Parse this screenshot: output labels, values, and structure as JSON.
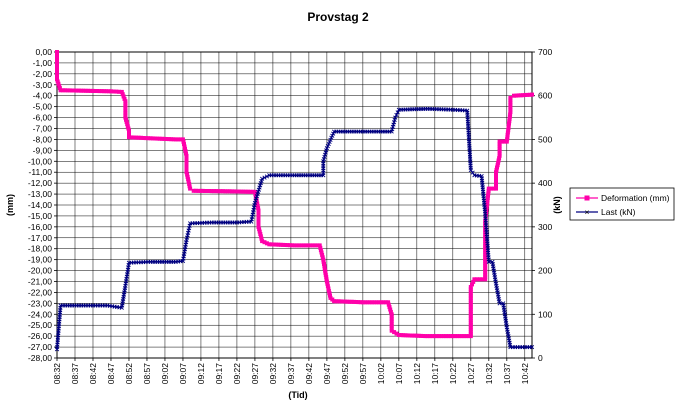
{
  "chart_data": {
    "type": "line",
    "title": "Provstag 2",
    "xlabel": "(Tid)",
    "ylabel_left": "(mm)",
    "ylabel_right": "(kN)",
    "grid": true,
    "legend_position": "right",
    "x_ticks": [
      "08:32",
      "08:37",
      "08:42",
      "08:47",
      "08:52",
      "08:57",
      "09:02",
      "09:07",
      "09:12",
      "09:17",
      "09:22",
      "09:27",
      "09:32",
      "09:37",
      "09:42",
      "09:47",
      "09:52",
      "09:57",
      "10:02",
      "10:07",
      "10:12",
      "10:17",
      "10:22",
      "10:27",
      "10:32",
      "10:37",
      "10:42"
    ],
    "x_minutes_start": 512,
    "x_minutes_end": 644,
    "ylim_left": [
      -28,
      0
    ],
    "ylim_right": [
      0,
      700
    ],
    "left_ticks": [
      "0,00",
      "-1,00",
      "-2,00",
      "-3,00",
      "-4,00",
      "-5,00",
      "-6,00",
      "-7,00",
      "-8,00",
      "-9,00",
      "-10,00",
      "-11,00",
      "-12,00",
      "-13,00",
      "-14,00",
      "-15,00",
      "-16,00",
      "-17,00",
      "-18,00",
      "-19,00",
      "-20,00",
      "-21,00",
      "-22,00",
      "-23,00",
      "-24,00",
      "-25,00",
      "-26,00",
      "-27,00",
      "-28,00"
    ],
    "right_ticks": [
      "0",
      "100",
      "200",
      "300",
      "400",
      "500",
      "600",
      "700"
    ],
    "series": [
      {
        "name": "Deformation (mm)",
        "axis": "left",
        "color": "#ff00aa",
        "marker": "square",
        "points": [
          [
            "08:32",
            0
          ],
          [
            "08:32",
            -1.0
          ],
          [
            "08:32",
            -2.5
          ],
          [
            "08:33",
            -3.5
          ],
          [
            "08:40",
            -3.55
          ],
          [
            "08:47",
            -3.6
          ],
          [
            "08:50",
            -3.65
          ],
          [
            "08:51",
            -4.5
          ],
          [
            "08:51",
            -6.0
          ],
          [
            "08:52",
            -7.2
          ],
          [
            "08:52",
            -7.8
          ],
          [
            "08:58",
            -7.9
          ],
          [
            "09:05",
            -8.0
          ],
          [
            "09:07",
            -8.0
          ],
          [
            "09:08",
            -9.5
          ],
          [
            "09:08",
            -11.0
          ],
          [
            "09:09",
            -12.5
          ],
          [
            "09:10",
            -12.7
          ],
          [
            "09:20",
            -12.75
          ],
          [
            "09:27",
            -12.8
          ],
          [
            "09:28",
            -14.5
          ],
          [
            "09:28",
            -16.0
          ],
          [
            "09:29",
            -17.3
          ],
          [
            "09:31",
            -17.6
          ],
          [
            "09:38",
            -17.7
          ],
          [
            "09:45",
            -17.7
          ],
          [
            "09:46",
            -19.0
          ],
          [
            "09:47",
            -21.0
          ],
          [
            "09:48",
            -22.5
          ],
          [
            "09:49",
            -22.8
          ],
          [
            "09:57",
            -22.9
          ],
          [
            "10:04",
            -22.9
          ],
          [
            "10:05",
            -24.0
          ],
          [
            "10:05",
            -25.5
          ],
          [
            "10:07",
            -25.9
          ],
          [
            "10:15",
            -26.0
          ],
          [
            "10:22",
            -26.0
          ],
          [
            "10:27",
            -26.0
          ],
          [
            "10:27",
            -21.5
          ],
          [
            "10:28",
            -20.8
          ],
          [
            "10:31",
            -20.8
          ],
          [
            "10:31",
            -15.5
          ],
          [
            "10:32",
            -12.5
          ],
          [
            "10:34",
            -12.5
          ],
          [
            "10:34",
            -11.0
          ],
          [
            "10:35",
            -9.5
          ],
          [
            "10:35",
            -8.2
          ],
          [
            "10:37",
            -8.2
          ],
          [
            "10:38",
            -5.5
          ],
          [
            "10:38",
            -4.2
          ],
          [
            "10:39",
            -4.0
          ],
          [
            "10:44",
            -3.9
          ]
        ]
      },
      {
        "name": "Last (kN)",
        "axis": "right",
        "color": "#000080",
        "marker": "cross",
        "points": [
          [
            "08:32",
            20
          ],
          [
            "08:33",
            120
          ],
          [
            "08:40",
            120
          ],
          [
            "08:46",
            120
          ],
          [
            "08:50",
            115
          ],
          [
            "08:51",
            165
          ],
          [
            "08:52",
            218
          ],
          [
            "08:58",
            220
          ],
          [
            "09:05",
            220
          ],
          [
            "09:07",
            222
          ],
          [
            "09:08",
            270
          ],
          [
            "09:09",
            308
          ],
          [
            "09:15",
            310
          ],
          [
            "09:22",
            310
          ],
          [
            "09:26",
            312
          ],
          [
            "09:27",
            355
          ],
          [
            "09:29",
            410
          ],
          [
            "09:31",
            418
          ],
          [
            "09:38",
            418
          ],
          [
            "09:46",
            418
          ],
          [
            "09:46",
            450
          ],
          [
            "09:47",
            480
          ],
          [
            "09:49",
            518
          ],
          [
            "09:57",
            518
          ],
          [
            "10:05",
            518
          ],
          [
            "10:06",
            550
          ],
          [
            "10:07",
            568
          ],
          [
            "10:15",
            570
          ],
          [
            "10:22",
            568
          ],
          [
            "10:26",
            566
          ],
          [
            "10:27",
            430
          ],
          [
            "10:28",
            418
          ],
          [
            "10:30",
            416
          ],
          [
            "10:31",
            330
          ],
          [
            "10:32",
            220
          ],
          [
            "10:33",
            220
          ],
          [
            "10:34",
            170
          ],
          [
            "10:35",
            125
          ],
          [
            "10:36",
            125
          ],
          [
            "10:37",
            70
          ],
          [
            "10:38",
            25
          ],
          [
            "10:44",
            25
          ]
        ]
      }
    ]
  }
}
